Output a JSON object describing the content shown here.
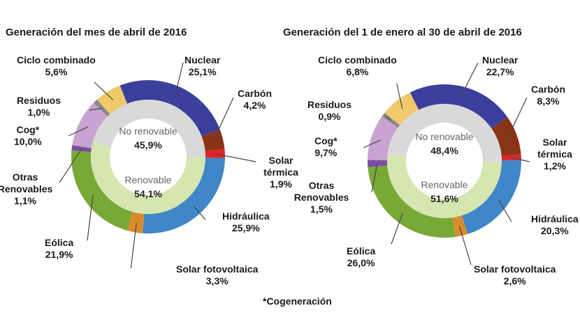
{
  "chart_data": [
    {
      "type": "pie",
      "title": "Generación del mes de abril de 2016",
      "inner_ring": [
        {
          "label": "No renovable",
          "value": 45.9,
          "value_label": "45,9%",
          "color": "#d9d9d9"
        },
        {
          "label": "Renovable",
          "value": 54.1,
          "value_label": "54,1%",
          "color": "#d6e6b0"
        }
      ],
      "outer_ring": [
        {
          "label": "Solar térmica",
          "value": 1.9,
          "value_label": "1,9%",
          "color": "#e02424"
        },
        {
          "label": "Hidráulica",
          "value": 25.9,
          "value_label": "25,9%",
          "color": "#3f87c9"
        },
        {
          "label": "Solar fotovoltaica",
          "value": 3.3,
          "value_label": "3,3%",
          "color": "#d98b2b"
        },
        {
          "label": "Eólica",
          "value": 21.9,
          "value_label": "21,9%",
          "color": "#78a836"
        },
        {
          "label": "Otras Renovables",
          "value": 1.1,
          "value_label": "1,1%",
          "color": "#7b4fa0"
        },
        {
          "label": "Cog*",
          "value": 10.0,
          "value_label": "10,0%",
          "color": "#c9a3d2"
        },
        {
          "label": "Residuos",
          "value": 1.0,
          "value_label": "1,0%",
          "color": "#8a8a8a"
        },
        {
          "label": "Ciclo combinado",
          "value": 5.6,
          "value_label": "5,6%",
          "color": "#f0c96a"
        },
        {
          "label": "Nuclear",
          "value": 25.1,
          "value_label": "25,1%",
          "color": "#3b3f9c"
        },
        {
          "label": "Carbón",
          "value": 4.2,
          "value_label": "4,2%",
          "color": "#8a3417"
        }
      ]
    },
    {
      "type": "pie",
      "title": "Generación del 1 de enero al 30 de abril de 2016",
      "inner_ring": [
        {
          "label": "No renovable",
          "value": 48.4,
          "value_label": "48,4%",
          "color": "#d9d9d9"
        },
        {
          "label": "Renovable",
          "value": 51.6,
          "value_label": "51,6%",
          "color": "#d6e6b0"
        }
      ],
      "outer_ring": [
        {
          "label": "Solar térmica",
          "value": 1.2,
          "value_label": "1,2%",
          "color": "#e02424"
        },
        {
          "label": "Hidráulica",
          "value": 20.3,
          "value_label": "20,3%",
          "color": "#3f87c9"
        },
        {
          "label": "Solar fotovoltaica",
          "value": 2.6,
          "value_label": "2,6%",
          "color": "#d98b2b"
        },
        {
          "label": "Eólica",
          "value": 26.0,
          "value_label": "26,0%",
          "color": "#78a836"
        },
        {
          "label": "Otras Renovables",
          "value": 1.5,
          "value_label": "1,5%",
          "color": "#7b4fa0"
        },
        {
          "label": "Cog*",
          "value": 9.7,
          "value_label": "9,7%",
          "color": "#c9a3d2"
        },
        {
          "label": "Residuos",
          "value": 0.9,
          "value_label": "0,9%",
          "color": "#8a8a8a"
        },
        {
          "label": "Ciclo combinado",
          "value": 6.8,
          "value_label": "6,8%",
          "color": "#f0c96a"
        },
        {
          "label": "Nuclear",
          "value": 22.7,
          "value_label": "22,7%",
          "color": "#3b3f9c"
        },
        {
          "label": "Carbón",
          "value": 8.3,
          "value_label": "8,3%",
          "color": "#8a3417"
        }
      ]
    }
  ],
  "footnote": "*Cogeneración"
}
